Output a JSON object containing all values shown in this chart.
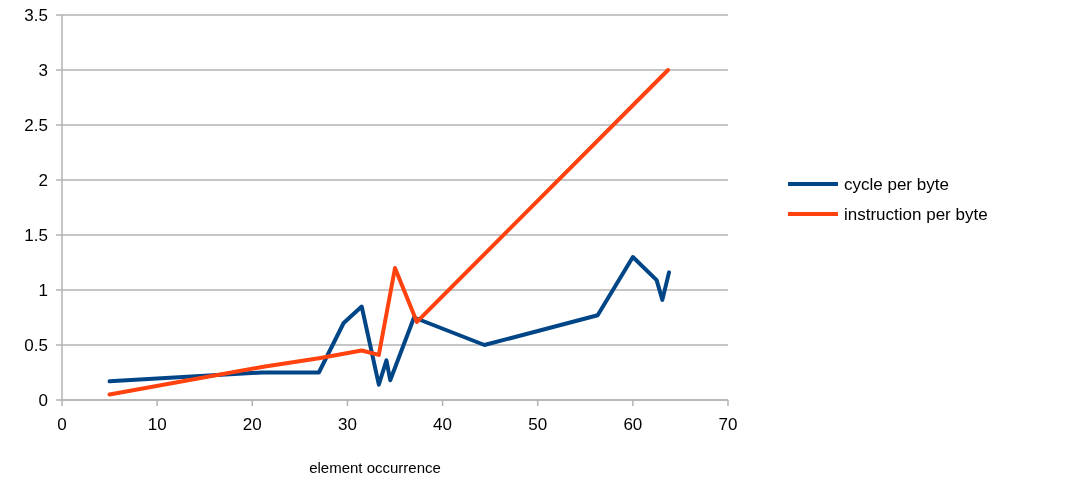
{
  "chart_data": {
    "type": "line",
    "xlabel": "element occurrence",
    "xlim": [
      0,
      70
    ],
    "xticks": [
      0,
      10,
      20,
      30,
      40,
      50,
      60,
      70
    ],
    "ylim": [
      0,
      3.5
    ],
    "yticks": [
      0,
      0.5,
      1,
      1.5,
      2,
      2.5,
      3,
      3.5
    ],
    "grid": "y",
    "legend": "right",
    "marker": "none",
    "line_style": "solid",
    "series": [
      {
        "name": "cycle per byte",
        "color": "#004586",
        "x": [
          5,
          21,
          27,
          29.6,
          31.5,
          33.3,
          34.1,
          34.5,
          37,
          44.4,
          56.3,
          60,
          62.5,
          63.1,
          63.8
        ],
        "values": [
          0.17,
          0.25,
          0.25,
          0.7,
          0.85,
          0.14,
          0.36,
          0.18,
          0.75,
          0.5,
          0.77,
          1.3,
          1.09,
          0.91,
          1.16
        ]
      },
      {
        "name": "instruction per byte",
        "color": "#ff420e",
        "x": [
          5,
          21,
          27,
          31.5,
          33.3,
          35,
          37.3,
          63.7
        ],
        "values": [
          0.05,
          0.3,
          0.38,
          0.45,
          0.41,
          1.2,
          0.71,
          3.0
        ]
      }
    ]
  }
}
